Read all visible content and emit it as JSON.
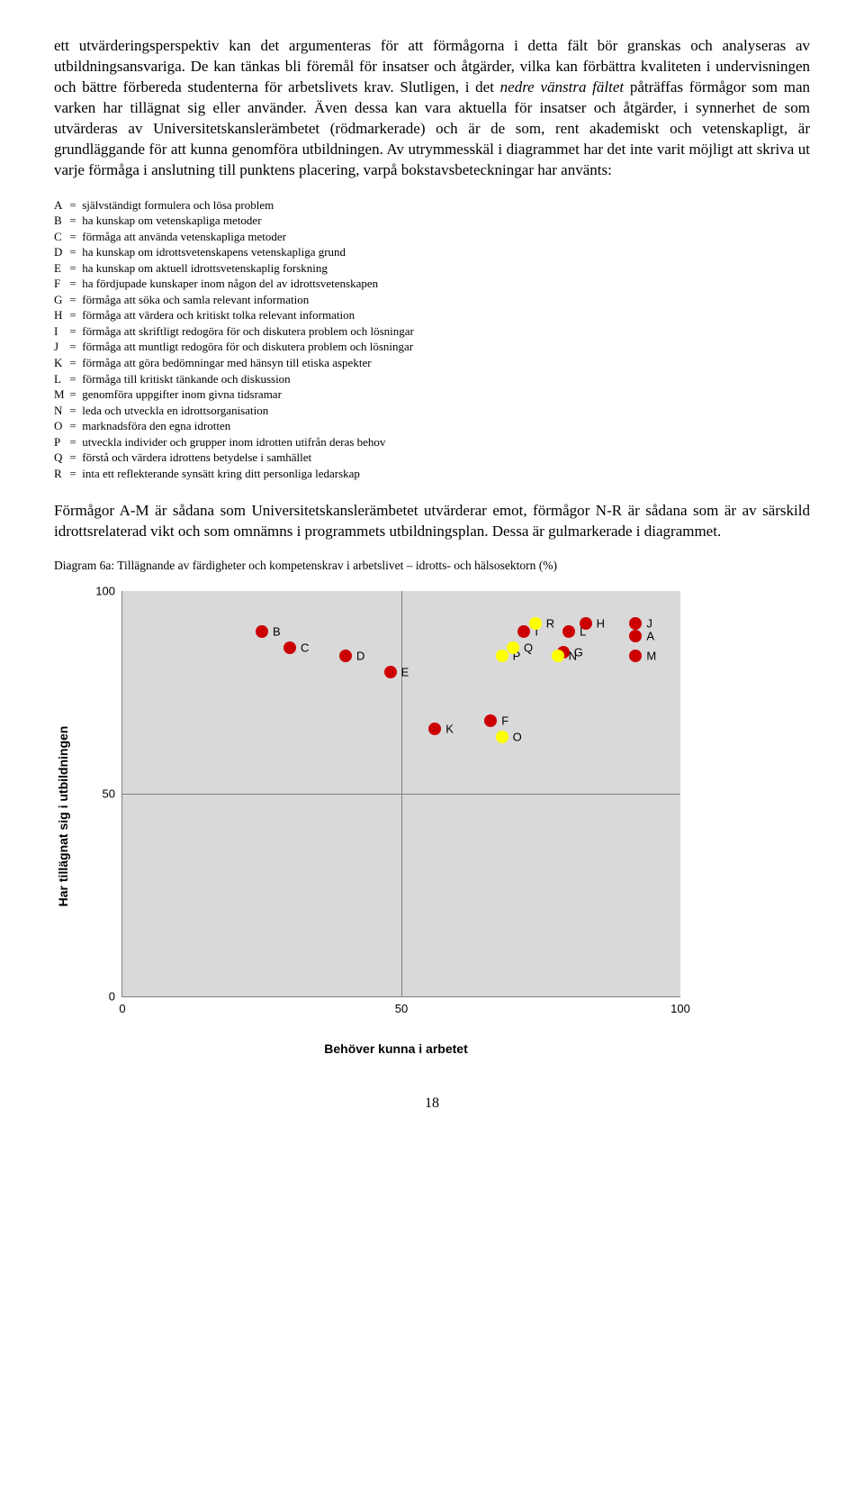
{
  "para1_a": "ett utvärderingsperspektiv kan det argumenteras för att förmågorna i detta fält bör granskas och analyseras av utbildningsansvariga. De kan tänkas bli föremål för insatser och åtgärder, vilka kan förbättra kvaliteten i undervisningen och bättre förbereda studenterna för arbetslivets krav. Slutligen, i det ",
  "para1_i": "nedre vänstra fältet",
  "para1_b": " påträffas förmågor som man varken har tillägnat sig eller använder. Även dessa kan vara aktuella för insatser och åtgärder, i synnerhet de som utvärderas av Universitetskanslerämbetet (rödmarkerade) och är de som, rent akademiskt och vetenskapligt, är grundläggande för att kunna genomföra utbildningen. Av utrymmesskäl i diagrammet har det inte varit möjligt att skriva ut varje förmåga i anslutning till punktens placering, varpå bokstavsbeteckningar har använts:",
  "legend": [
    {
      "k": "A",
      "t": "självständigt formulera och lösa problem"
    },
    {
      "k": "B",
      "t": "ha kunskap om vetenskapliga metoder"
    },
    {
      "k": "C",
      "t": "förmåga att använda vetenskapliga metoder"
    },
    {
      "k": "D",
      "t": "ha kunskap om idrottsvetenskapens vetenskapliga grund"
    },
    {
      "k": "E",
      "t": "ha kunskap om aktuell idrottsvetenskaplig forskning"
    },
    {
      "k": "F",
      "t": "ha fördjupade kunskaper inom någon del av idrottsvetenskapen"
    },
    {
      "k": "G",
      "t": "förmåga att söka och samla relevant information"
    },
    {
      "k": "H",
      "t": "förmåga att värdera och kritiskt tolka relevant information"
    },
    {
      "k": "I",
      "t": "förmåga att skriftligt redogöra för och diskutera problem och lösningar"
    },
    {
      "k": "J",
      "t": "förmåga att muntligt redogöra för och diskutera problem och lösningar"
    },
    {
      "k": "K",
      "t": "förmåga att göra bedömningar med hänsyn till etiska aspekter"
    },
    {
      "k": "L",
      "t": "förmåga till kritiskt tänkande och diskussion"
    },
    {
      "k": "M",
      "t": "genomföra uppgifter inom givna tidsramar"
    },
    {
      "k": "N",
      "t": "leda och utveckla en idrottsorganisation"
    },
    {
      "k": "O",
      "t": "marknadsföra den egna idrotten"
    },
    {
      "k": "P",
      "t": "utveckla individer och grupper inom idrotten utifrån deras behov"
    },
    {
      "k": "Q",
      "t": "förstå och värdera idrottens betydelse i samhället"
    },
    {
      "k": "R",
      "t": "inta ett reflekterande synsätt kring ditt personliga ledarskap"
    }
  ],
  "para2": "Förmågor A-M är sådana som Universitetskanslerämbetet utvärderar emot, förmågor N-R är sådana som är av särskild idrottsrelaterad vikt och som omnämns i programmets utbildningsplan. Dessa är gulmarkerade i diagrammet.",
  "chart": {
    "caption": "Diagram 6a: Tillägnande av färdigheter och kompetenskrav i arbetslivet – idrotts- och hälsosektorn (%)",
    "x_label": "Behöver kunna i arbetet",
    "y_label": "Har tillägnat sig i utbildningen",
    "bg": "#d9d9d9",
    "grid_color": "#808080",
    "xlim": [
      0,
      100
    ],
    "ylim": [
      0,
      100
    ],
    "ticks": [
      0,
      50,
      100
    ],
    "red": "#cc0000",
    "yellow": "#ffff00",
    "points": [
      {
        "k": "A",
        "x": 92,
        "y": 89,
        "c": "red"
      },
      {
        "k": "B",
        "x": 25,
        "y": 90,
        "c": "red"
      },
      {
        "k": "C",
        "x": 30,
        "y": 86,
        "c": "red"
      },
      {
        "k": "D",
        "x": 40,
        "y": 84,
        "c": "red"
      },
      {
        "k": "E",
        "x": 48,
        "y": 80,
        "c": "red"
      },
      {
        "k": "F",
        "x": 66,
        "y": 68,
        "c": "red"
      },
      {
        "k": "G",
        "x": 79,
        "y": 85,
        "c": "red"
      },
      {
        "k": "H",
        "x": 83,
        "y": 92,
        "c": "red"
      },
      {
        "k": "I",
        "x": 72,
        "y": 90,
        "c": "red"
      },
      {
        "k": "J",
        "x": 92,
        "y": 92,
        "c": "red"
      },
      {
        "k": "K",
        "x": 56,
        "y": 66,
        "c": "red"
      },
      {
        "k": "L",
        "x": 80,
        "y": 90,
        "c": "red"
      },
      {
        "k": "M",
        "x": 92,
        "y": 84,
        "c": "red"
      },
      {
        "k": "N",
        "x": 78,
        "y": 84,
        "c": "yellow"
      },
      {
        "k": "O",
        "x": 68,
        "y": 64,
        "c": "yellow"
      },
      {
        "k": "P",
        "x": 68,
        "y": 84,
        "c": "yellow"
      },
      {
        "k": "Q",
        "x": 70,
        "y": 86,
        "c": "yellow"
      },
      {
        "k": "R",
        "x": 74,
        "y": 92,
        "c": "yellow"
      }
    ]
  },
  "page_number": "18"
}
